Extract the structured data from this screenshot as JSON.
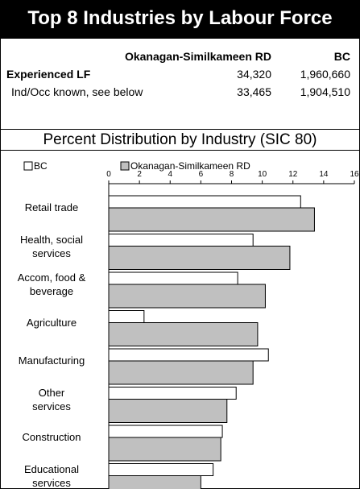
{
  "header": {
    "title": "Top 8 Industries by Labour Force"
  },
  "table": {
    "columns": [
      "Okanagan-Similkameen RD",
      "BC"
    ],
    "rows": [
      [
        "Experienced LF",
        "34,320",
        "1,960,660"
      ],
      [
        "Ind/Occ known, see below",
        "33,465",
        "1,904,510"
      ]
    ]
  },
  "chart_data": {
    "type": "hbar",
    "title": "Percent Distribution by Industry (SIC 80)",
    "categories": [
      "Retail trade",
      "Health, social\nservices",
      "Accom, food &\nbeverage",
      "Agriculture",
      "Manufacturing",
      "Other\nservices",
      "Construction",
      "Educational\nservices"
    ],
    "series": [
      {
        "name": "BC",
        "color": "#ffffff",
        "values": [
          12.5,
          9.4,
          8.4,
          2.3,
          10.4,
          8.3,
          7.4,
          6.8
        ]
      },
      {
        "name": "Okanagan-Similkameen RD",
        "color": "#c0c0c0",
        "values": [
          13.4,
          11.8,
          10.2,
          9.7,
          9.4,
          7.7,
          7.3,
          6.0
        ]
      }
    ],
    "xlim": [
      0,
      16
    ],
    "xticks": [
      0,
      2,
      4,
      6,
      8,
      10,
      12,
      14,
      16
    ],
    "legend": "top"
  }
}
